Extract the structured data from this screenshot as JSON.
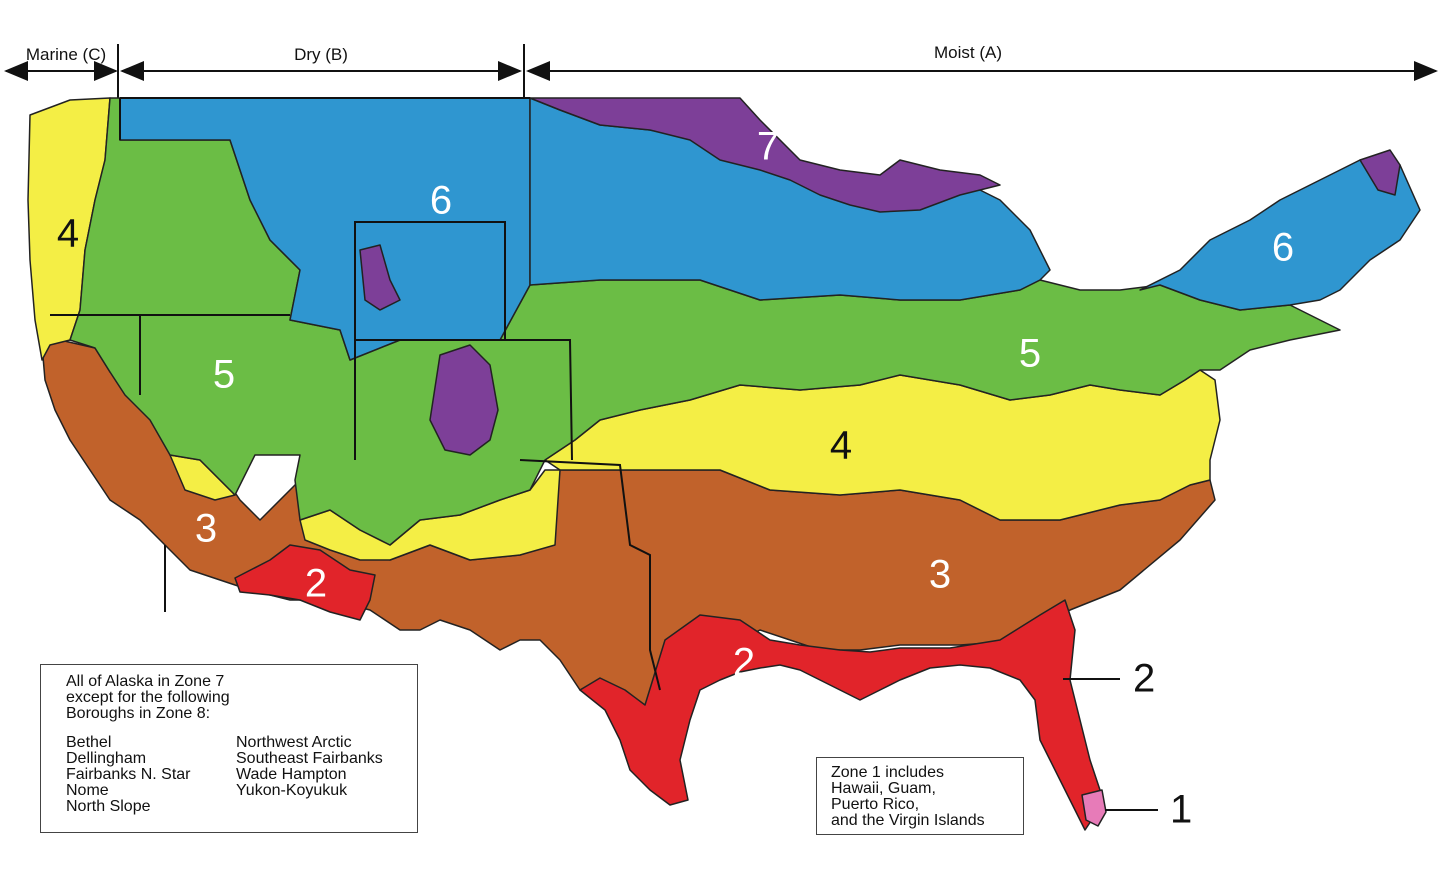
{
  "moisture_regimes": [
    {
      "id": "marine",
      "label": "Marine (C)"
    },
    {
      "id": "dry",
      "label": "Dry (B)"
    },
    {
      "id": "moist",
      "label": "Moist (A)"
    }
  ],
  "zones": [
    {
      "id": "zone-1",
      "number": "1",
      "color": "#e77bb8"
    },
    {
      "id": "zone-2",
      "number": "2",
      "color": "#e1242a"
    },
    {
      "id": "zone-3",
      "number": "3",
      "color": "#c1622b"
    },
    {
      "id": "zone-4",
      "number": "4",
      "color": "#f4ee45"
    },
    {
      "id": "zone-5",
      "number": "5",
      "color": "#6bbd45"
    },
    {
      "id": "zone-6",
      "number": "6",
      "color": "#2f96d0"
    },
    {
      "id": "zone-7",
      "number": "7",
      "color": "#7d3f98"
    }
  ],
  "map_labels": {
    "z7": "7",
    "z6_west": "6",
    "z6_east": "6",
    "z5_west": "5",
    "z5_east": "5",
    "z4_west": "4",
    "z4_central": "4",
    "z3_west": "3",
    "z3_east": "3",
    "z2_arizona": "2",
    "z2_gulf": "2",
    "z2_callout": "2",
    "z1_callout": "1"
  },
  "alaska_note": {
    "heading_lines": [
      "All of Alaska in Zone 7",
      "except for the following",
      "Boroughs in Zone 8:"
    ],
    "boroughs_col1": [
      "Bethel",
      "Dellingham",
      "Fairbanks N. Star",
      "Nome",
      "North Slope"
    ],
    "boroughs_col2": [
      "Northwest Arctic",
      "Southeast Fairbanks",
      "Wade Hampton",
      "Yukon-Koyukuk"
    ]
  },
  "zone1_note": {
    "lines": [
      "Zone 1 includes",
      "Hawaii, Guam,",
      "Puerto Rico,",
      "and the Virgin Islands"
    ]
  }
}
